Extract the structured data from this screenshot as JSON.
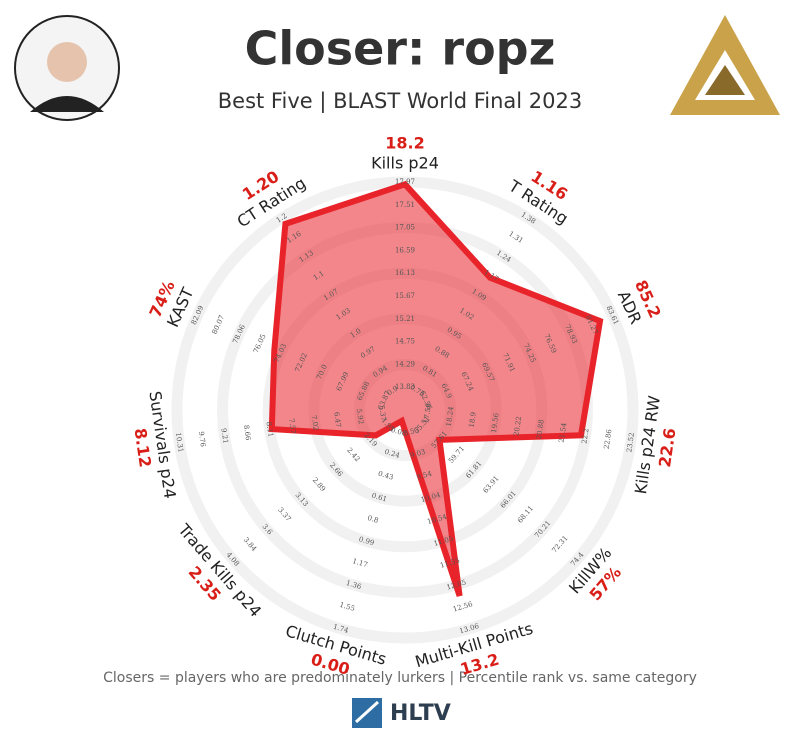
{
  "chart_data": {
    "type": "radar",
    "title": "Closer: ropz",
    "subtitle": "Best Five | BLAST World Final 2023",
    "footer": "Closers = players who are predominately lurkers | Percentile rank vs. same category",
    "brand": "HLTV",
    "rlim": [
      0,
      100
    ],
    "axes": [
      {
        "label": "Kills p24",
        "stat": "18.2",
        "ticks": [
          "13.83",
          "14.29",
          "14.75",
          "15.21",
          "15.67",
          "16.13",
          "16.59",
          "17.05",
          "17.51",
          "17.97"
        ]
      },
      {
        "label": "T Rating",
        "stat": "1.16",
        "ticks": [
          "0.73",
          "0.81",
          "0.88",
          "0.95",
          "1.02",
          "1.09",
          "1.17",
          "1.24",
          "1.31",
          "1.38"
        ]
      },
      {
        "label": "ADR",
        "stat": "85.2",
        "ticks": [
          "62.56",
          "64.9",
          "67.24",
          "69.57",
          "71.91",
          "74.25",
          "76.59",
          "78.93",
          "81.27",
          "83.61"
        ]
      },
      {
        "label": "Kills p24 RW",
        "stat": "22.6",
        "ticks": [
          "17.58",
          "18.24",
          "18.9",
          "19.56",
          "20.22",
          "20.88",
          "21.54",
          "22.2",
          "22.86",
          "23.52"
        ]
      },
      {
        "label": "KillW%",
        "stat": "57%",
        "ticks": [
          "55.51",
          "57.61",
          "59.71",
          "61.81",
          "63.91",
          "66.01",
          "68.11",
          "70.21",
          "72.31",
          "74.4"
        ]
      },
      {
        "label": "Multi-Kill Points",
        "stat": "13.2",
        "ticks": [
          "8.53",
          "9.03",
          "9.54",
          "10.04",
          "10.54",
          "11.05",
          "11.55",
          "12.05",
          "12.56",
          "13.06"
        ]
      },
      {
        "label": "Clutch Points",
        "stat": "0.00",
        "ticks": [
          "0.06",
          "0.24",
          "0.43",
          "0.61",
          "0.8",
          "0.99",
          "1.17",
          "1.36",
          "1.55",
          "1.74"
        ]
      },
      {
        "label": "Trade Kills p24",
        "stat": "2.35",
        "ticks": [
          "1.95",
          "2.19",
          "2.42",
          "2.66",
          "2.89",
          "3.13",
          "3.37",
          "3.6",
          "3.84",
          "4.08"
        ]
      },
      {
        "label": "Survivals p24",
        "stat": "8.12",
        "ticks": [
          "5.37",
          "5.92",
          "6.47",
          "7.02",
          "7.57",
          "8.11",
          "8.66",
          "9.21",
          "9.76",
          "10.31"
        ]
      },
      {
        "label": "KAST",
        "stat": "74%",
        "ticks": [
          "63.87",
          "65.88",
          "67.99",
          "70.0",
          "72.02",
          "74.03",
          "76.05",
          "78.06",
          "80.07",
          "82.09"
        ]
      },
      {
        "label": "CT Rating",
        "stat": "1.20",
        "ticks": [
          "0.9",
          "0.94",
          "0.97",
          "1.0",
          "1.03",
          "1.07",
          "1.1",
          "1.13",
          "1.16",
          "1.2"
        ]
      }
    ],
    "series": [
      {
        "color": "#e8232a",
        "values": [
          99,
          69,
          94,
          78,
          20,
          85,
          5,
          17,
          59,
          63,
          97
        ]
      }
    ]
  }
}
